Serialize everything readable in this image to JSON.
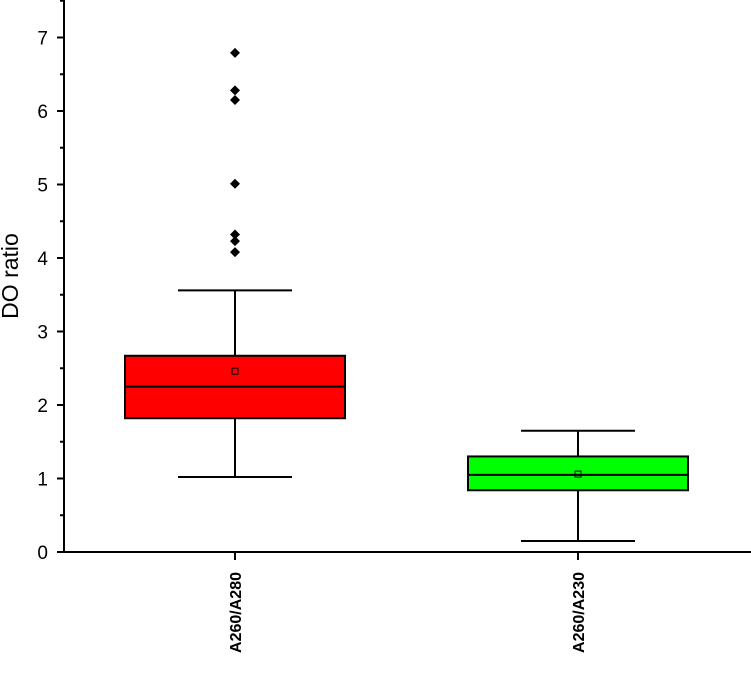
{
  "chart_data": {
    "type": "box",
    "ylabel": "DO ratio",
    "ylim": [
      0,
      7.5
    ],
    "yticks": [
      0,
      1,
      2,
      3,
      4,
      5,
      6,
      7
    ],
    "categories": [
      "A260/A280",
      "A260/A230"
    ],
    "boxes": [
      {
        "category": "A260/A280",
        "whisker_low": 1.02,
        "q1": 1.82,
        "median": 2.25,
        "q3": 2.67,
        "whisker_high": 3.56,
        "mean": 2.46,
        "outliers": [
          4.08,
          4.23,
          4.32,
          5.01,
          6.15,
          6.28,
          6.79
        ],
        "color": "#ff0000"
      },
      {
        "category": "A260/A230",
        "whisker_low": 0.15,
        "q1": 0.84,
        "median": 1.05,
        "q3": 1.3,
        "whisker_high": 1.65,
        "mean": 1.06,
        "outliers": [],
        "color": "#00ff00"
      }
    ],
    "grid": false,
    "legend": "none"
  }
}
